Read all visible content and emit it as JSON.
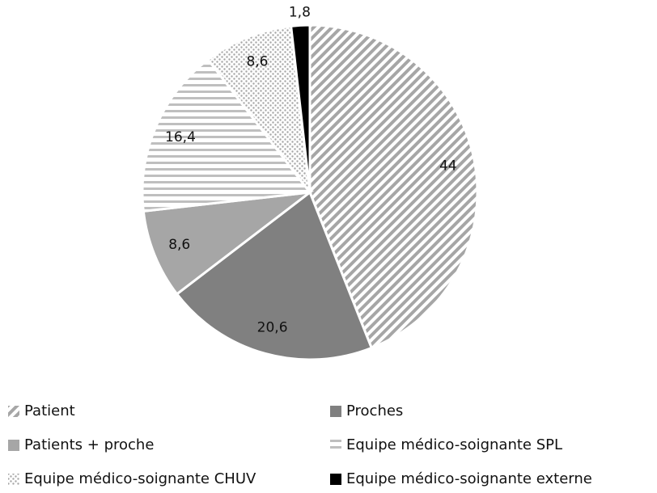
{
  "chart_data": {
    "type": "pie",
    "categories": [
      "Patient",
      "Proches",
      "Patients + proche",
      "Equipe médico-soignante SPL",
      "Equipe médico-soignante CHUV",
      "Equipe médico-soignante externe"
    ],
    "values": [
      44,
      20.6,
      8.6,
      16.4,
      8.6,
      1.8
    ],
    "value_labels": [
      "44",
      "20,6",
      "8,6",
      "16,4",
      "8,6",
      "1,8"
    ],
    "colors": [
      "#a6a6a6",
      "#808080",
      "#a6a6a6",
      "#bfbfbf",
      "#a6a6a6",
      "#000000"
    ],
    "patterns": [
      "diagonal",
      "solid",
      "solid",
      "horizontal",
      "dots",
      "solid"
    ],
    "legend": "bottom"
  }
}
